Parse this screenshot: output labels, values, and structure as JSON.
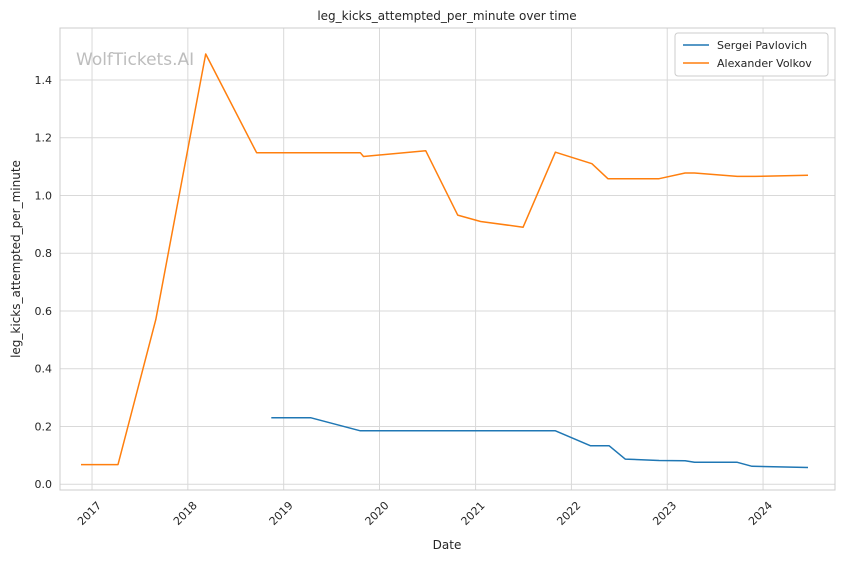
{
  "watermark": "WolfTickets.AI",
  "chart_data": {
    "type": "line",
    "title": "leg_kicks_attempted_per_minute over time",
    "xlabel": "Date",
    "ylabel": "leg_kicks_attempted_per_minute",
    "x_range": [
      "2016-09-01",
      "2024-10-01"
    ],
    "ylim": [
      -0.02,
      1.58
    ],
    "x_ticks": [
      "2017",
      "2018",
      "2019",
      "2020",
      "2021",
      "2022",
      "2023",
      "2024"
    ],
    "y_ticks": [
      "0.0",
      "0.2",
      "0.4",
      "0.6",
      "0.8",
      "1.0",
      "1.2",
      "1.4"
    ],
    "grid": true,
    "legend_position": "top-right",
    "series": [
      {
        "name": "Sergei Pavlovich",
        "color": "#1f77b4",
        "points": [
          [
            "2018-11-15",
            0.23
          ],
          [
            "2019-04-15",
            0.23
          ],
          [
            "2019-10-20",
            0.185
          ],
          [
            "2021-11-01",
            0.185
          ],
          [
            "2022-03-15",
            0.133
          ],
          [
            "2022-05-25",
            0.133
          ],
          [
            "2022-07-25",
            0.087
          ],
          [
            "2022-12-01",
            0.082
          ],
          [
            "2023-03-10",
            0.081
          ],
          [
            "2023-04-15",
            0.076
          ],
          [
            "2023-09-25",
            0.076
          ],
          [
            "2023-11-20",
            0.062
          ],
          [
            "2024-06-20",
            0.058
          ]
        ]
      },
      {
        "name": "Alexander Volkov",
        "color": "#ff7f0e",
        "points": [
          [
            "2016-11-20",
            0.068
          ],
          [
            "2017-04-10",
            0.068
          ],
          [
            "2017-09-01",
            0.57
          ],
          [
            "2018-03-10",
            1.49
          ],
          [
            "2018-09-20",
            1.148
          ],
          [
            "2019-10-20",
            1.148
          ],
          [
            "2019-11-01",
            1.135
          ],
          [
            "2020-06-25",
            1.155
          ],
          [
            "2020-10-25",
            0.932
          ],
          [
            "2021-01-20",
            0.91
          ],
          [
            "2021-07-01",
            0.89
          ],
          [
            "2021-11-01",
            1.15
          ],
          [
            "2022-03-20",
            1.11
          ],
          [
            "2022-05-20",
            1.058
          ],
          [
            "2022-12-01",
            1.058
          ],
          [
            "2023-03-10",
            1.078
          ],
          [
            "2023-04-15",
            1.078
          ],
          [
            "2023-09-25",
            1.066
          ],
          [
            "2023-12-01",
            1.066
          ],
          [
            "2024-06-20",
            1.07
          ]
        ]
      }
    ]
  }
}
